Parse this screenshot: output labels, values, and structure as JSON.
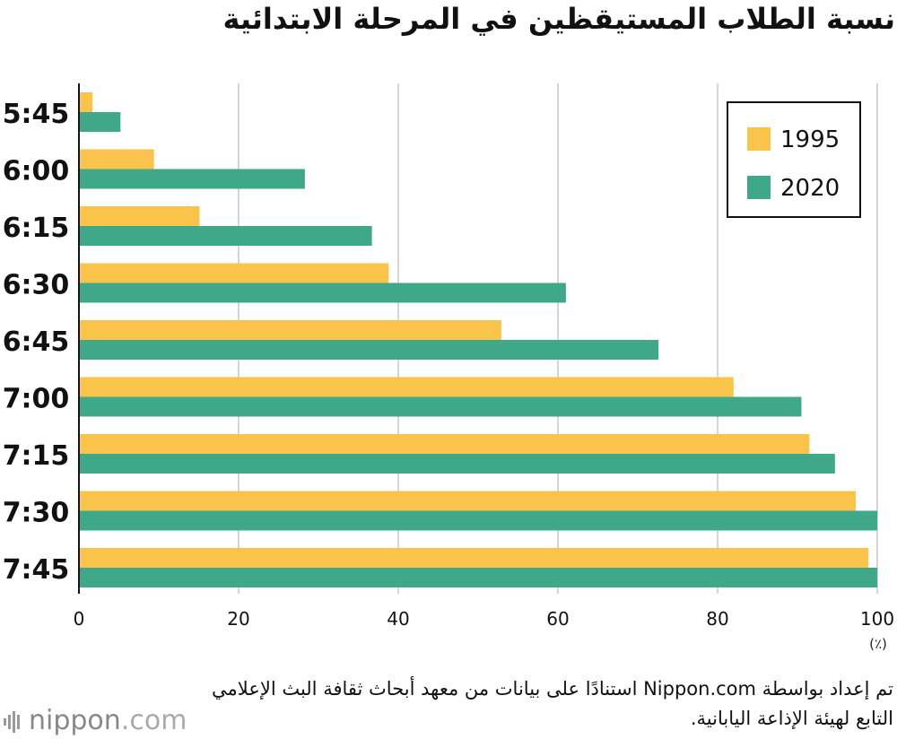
{
  "title": "نسبة الطلاب المستيقظين في المرحلة الابتدائية",
  "chart_data": {
    "type": "bar",
    "orientation": "horizontal",
    "title": "نسبة الطلاب المستيقظين في المرحلة الابتدائية",
    "categories": [
      "5:45",
      "6:00",
      "6:15",
      "6:30",
      "6:45",
      "7:00",
      "7:15",
      "7:30",
      "7:45"
    ],
    "series": [
      {
        "name": "1995",
        "color": "#f9c34c",
        "values": [
          1.7,
          9.4,
          15.1,
          38.8,
          52.9,
          82.0,
          91.5,
          97.3,
          98.9
        ]
      },
      {
        "name": "2020",
        "color": "#3fa888",
        "values": [
          5.2,
          28.3,
          36.7,
          61.0,
          72.6,
          90.5,
          94.7,
          100,
          100
        ]
      }
    ],
    "xlim": [
      0,
      100
    ],
    "xticks": [
      "0",
      "20",
      "40",
      "60",
      "80",
      "100"
    ],
    "xlabel": "(٪)",
    "legend": "top-right",
    "grid": true
  },
  "source": "تم إعداد بواسطة Nippon.com استنادًا على بيانات من معهد أبحاث ثقافة البث الإعلامي التابع لهيئة الإذاعة اليابانية.",
  "logo": {
    "name": "nippon",
    "suffix": ".com"
  }
}
